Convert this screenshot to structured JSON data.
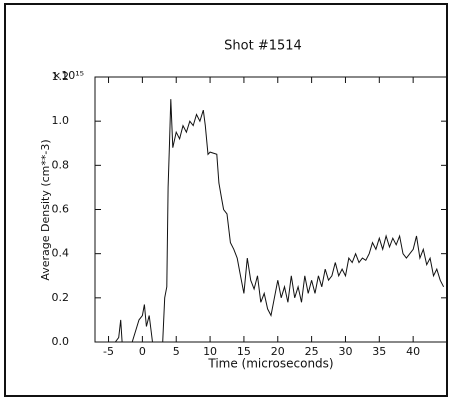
{
  "chart_data": {
    "type": "line",
    "title": "Shot #1514",
    "x_label": "Time (microseconds)",
    "y_label": "Average Density (cm**-3)",
    "y_multiplier": "×10¹⁵",
    "xlim": [
      -7,
      45
    ],
    "ylim": [
      0,
      1.2
    ],
    "xticks": [
      -5,
      0,
      5,
      10,
      15,
      20,
      25,
      30,
      35,
      40
    ],
    "yticks": [
      {
        "value": 0,
        "label": "0.0"
      },
      0.2,
      0.4,
      0.6,
      0.8,
      {
        "value": 1,
        "label": "1.0"
      },
      1.2
    ],
    "series": [
      {
        "color": "#111111",
        "x": [
          -5,
          -4.5,
          -4,
          -3.5,
          -3.2,
          -3,
          -2.5,
          -2,
          -1.5,
          -1,
          -0.5,
          0,
          0.3,
          0.6,
          1,
          1.5,
          2,
          2.5,
          3,
          3.3,
          3.6,
          3.8,
          4,
          4.2,
          4.5,
          5,
          5.5,
          6,
          6.5,
          7,
          7.5,
          8,
          8.5,
          9,
          9.3,
          9.7,
          10,
          11,
          11.3,
          11.7,
          12,
          12.5,
          13,
          13.5,
          14,
          14.5,
          15,
          15.5,
          16,
          16.5,
          17,
          17.5,
          18,
          18.5,
          19,
          19.5,
          20,
          20.5,
          21,
          21.5,
          22,
          22.5,
          23,
          23.5,
          24,
          24.5,
          25,
          25.5,
          26,
          26.5,
          27,
          27.5,
          28,
          28.5,
          29,
          29.5,
          30,
          30.5,
          31,
          31.5,
          32,
          32.5,
          33,
          33.5,
          34,
          34.5,
          35,
          35.5,
          36,
          36.5,
          37,
          37.5,
          38,
          38.5,
          39,
          39.5,
          40,
          40.5,
          41,
          41.5,
          42,
          42.5,
          43,
          43.5,
          44,
          44.5
        ],
        "values": [
          0,
          0,
          0,
          0.02,
          0.1,
          0,
          0,
          0,
          0,
          0.05,
          0.1,
          0.12,
          0.17,
          0.07,
          0.12,
          0,
          0,
          0,
          0,
          0.2,
          0.25,
          0.7,
          0.9,
          1.1,
          0.88,
          0.95,
          0.92,
          0.98,
          0.95,
          1.0,
          0.98,
          1.03,
          1.0,
          1.05,
          0.98,
          0.85,
          0.86,
          0.85,
          0.72,
          0.65,
          0.6,
          0.58,
          0.45,
          0.42,
          0.38,
          0.3,
          0.22,
          0.38,
          0.28,
          0.24,
          0.3,
          0.18,
          0.22,
          0.15,
          0.12,
          0.2,
          0.28,
          0.2,
          0.25,
          0.18,
          0.3,
          0.2,
          0.25,
          0.18,
          0.3,
          0.22,
          0.28,
          0.22,
          0.3,
          0.25,
          0.33,
          0.28,
          0.3,
          0.36,
          0.3,
          0.33,
          0.3,
          0.38,
          0.36,
          0.4,
          0.36,
          0.38,
          0.37,
          0.4,
          0.45,
          0.42,
          0.47,
          0.42,
          0.48,
          0.43,
          0.47,
          0.44,
          0.48,
          0.4,
          0.38,
          0.4,
          0.42,
          0.48,
          0.38,
          0.42,
          0.35,
          0.38,
          0.3,
          0.33,
          0.28,
          0.25
        ]
      }
    ]
  }
}
